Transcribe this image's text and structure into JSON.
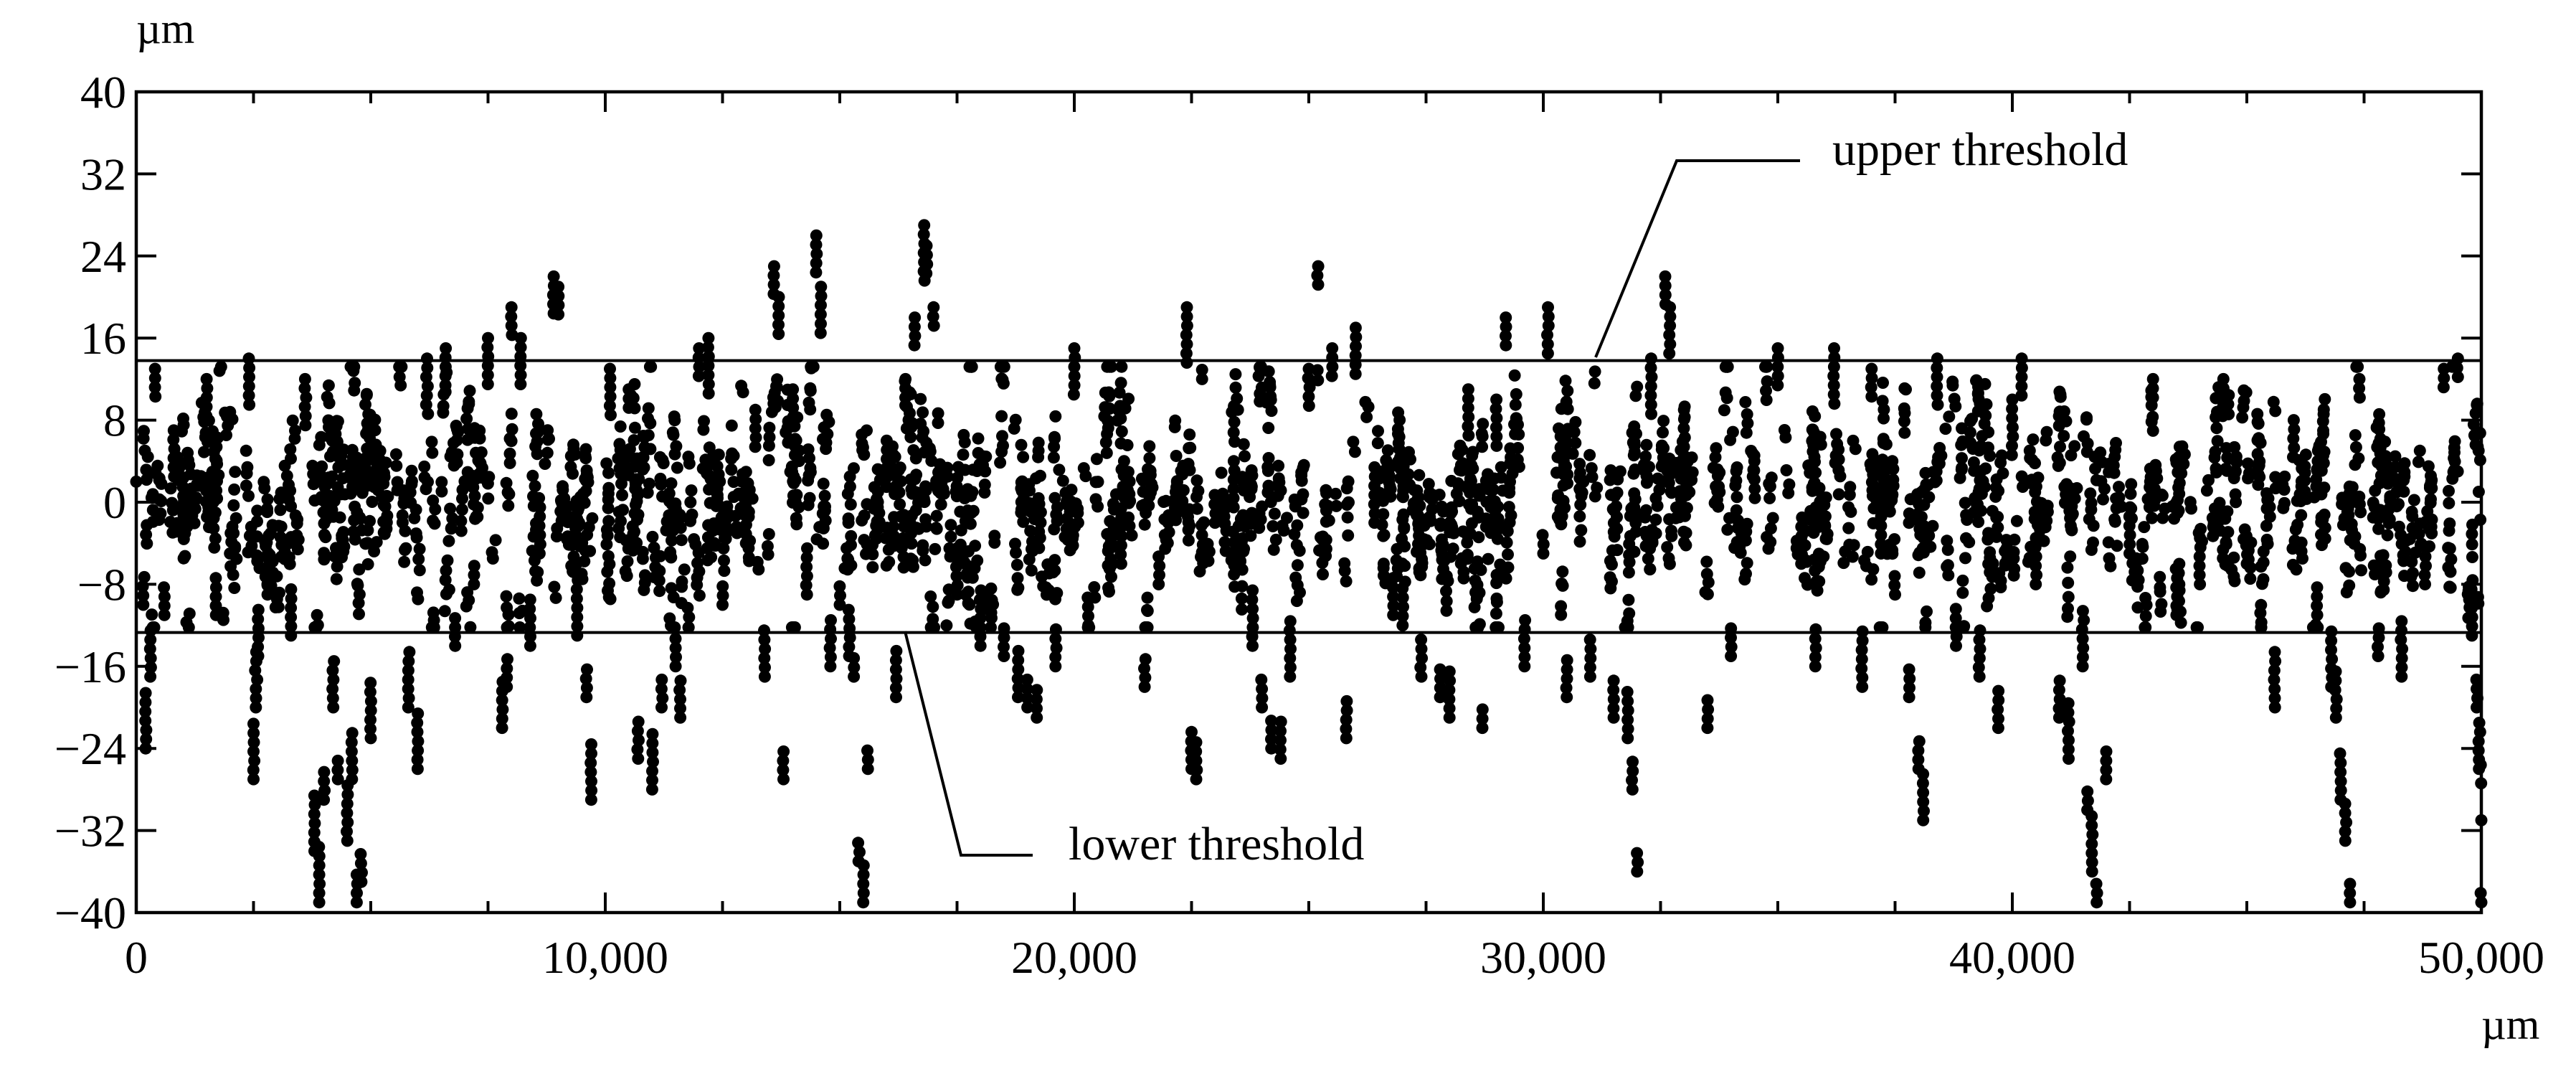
{
  "chart_data": {
    "type": "scatter",
    "title": "",
    "xlabel": "µm",
    "ylabel": "µm",
    "xlim": [
      0,
      50000
    ],
    "ylim": [
      -40,
      40
    ],
    "x_ticks": [
      0,
      10000,
      20000,
      30000,
      40000,
      50000
    ],
    "x_tick_labels": [
      "0",
      "10,000",
      "20,000",
      "30,000",
      "40,000",
      "50,000"
    ],
    "y_ticks": [
      40,
      32,
      24,
      16,
      8,
      0,
      -8,
      -16,
      -24,
      -32,
      -40
    ],
    "y_tick_labels": [
      "40",
      "32",
      "24",
      "16",
      "8",
      "0",
      "−8",
      "−16",
      "−24",
      "−32",
      "−40"
    ],
    "grid": false,
    "thresholds": [
      {
        "name": "upper threshold",
        "value": 13.8
      },
      {
        "name": "lower threshold",
        "value": -12.7
      }
    ],
    "annotations": [
      {
        "text": "upper threshold",
        "points_to": "upper-threshold-line"
      },
      {
        "text": "lower threshold",
        "points_to": "lower-threshold-line"
      }
    ],
    "series": [
      {
        "marker_color": "#000000",
        "point_count_approx": 3000,
        "description_of_data": "dense scatter of profile deviations",
        "points": [
          [
            0,
            2
          ],
          [
            150,
            -10
          ],
          [
            200,
            -24
          ],
          [
            300,
            -17
          ],
          [
            400,
            13
          ],
          [
            600,
            -11
          ],
          [
            800,
            7
          ],
          [
            1000,
            -3
          ],
          [
            1500,
            12
          ],
          [
            1700,
            -11
          ],
          [
            2400,
            14
          ],
          [
            2500,
            -27
          ],
          [
            2550,
            -20
          ],
          [
            2600,
            -15
          ],
          [
            2800,
            -9
          ],
          [
            3300,
            -13
          ],
          [
            3600,
            12
          ],
          [
            3800,
            -34
          ],
          [
            3900,
            -39
          ],
          [
            4000,
            -29
          ],
          [
            4200,
            -20
          ],
          [
            4300,
            -27
          ],
          [
            4500,
            -33
          ],
          [
            4600,
            -27
          ],
          [
            4700,
            -39
          ],
          [
            4800,
            -37
          ],
          [
            5000,
            -23
          ],
          [
            5200,
            5
          ],
          [
            5800,
            -20
          ],
          [
            6000,
            -26
          ],
          [
            6200,
            14
          ],
          [
            6600,
            15
          ],
          [
            6800,
            -14
          ],
          [
            7200,
            -8
          ],
          [
            7500,
            16
          ],
          [
            7800,
            -22
          ],
          [
            7900,
            -18
          ],
          [
            8000,
            19
          ],
          [
            8200,
            16
          ],
          [
            8400,
            -14
          ],
          [
            8600,
            -5
          ],
          [
            8900,
            22
          ],
          [
            9000,
            21
          ],
          [
            9400,
            -13
          ],
          [
            9600,
            -19
          ],
          [
            9700,
            -29
          ],
          [
            10100,
            13
          ],
          [
            10500,
            11
          ],
          [
            10700,
            -25
          ],
          [
            11000,
            -28
          ],
          [
            11200,
            -20
          ],
          [
            11500,
            -16
          ],
          [
            11600,
            -21
          ],
          [
            12000,
            15
          ],
          [
            12200,
            16
          ],
          [
            12500,
            -10
          ],
          [
            13000,
            -4
          ],
          [
            13200,
            9
          ],
          [
            13400,
            -17
          ],
          [
            13600,
            23
          ],
          [
            13700,
            20
          ],
          [
            13800,
            -27
          ],
          [
            14000,
            11
          ],
          [
            14300,
            -9
          ],
          [
            14500,
            26
          ],
          [
            14600,
            21
          ],
          [
            14800,
            -16
          ],
          [
            15000,
            -10
          ],
          [
            15200,
            -15
          ],
          [
            15300,
            -17
          ],
          [
            15400,
            -35
          ],
          [
            15500,
            -39
          ],
          [
            15600,
            -26
          ],
          [
            16000,
            6
          ],
          [
            16200,
            -19
          ],
          [
            16400,
            12
          ],
          [
            16600,
            18
          ],
          [
            16800,
            27
          ],
          [
            16850,
            25
          ],
          [
            17000,
            19
          ],
          [
            17500,
            -9
          ],
          [
            18000,
            -14
          ],
          [
            18500,
            -15
          ],
          [
            18800,
            -19
          ],
          [
            19000,
            -20
          ],
          [
            19200,
            -21
          ],
          [
            19600,
            -16
          ],
          [
            20000,
            15
          ],
          [
            20300,
            -12
          ],
          [
            21000,
            -6
          ],
          [
            21500,
            -18
          ],
          [
            21800,
            -8
          ],
          [
            22400,
            19
          ],
          [
            22500,
            -26
          ],
          [
            22600,
            -27
          ],
          [
            23000,
            -2
          ],
          [
            23400,
            4
          ],
          [
            23800,
            -14
          ],
          [
            24000,
            -20
          ],
          [
            24200,
            -24
          ],
          [
            24400,
            -25
          ],
          [
            24600,
            -17
          ],
          [
            25000,
            13
          ],
          [
            25200,
            23
          ],
          [
            25500,
            15
          ],
          [
            25800,
            -23
          ],
          [
            26000,
            17
          ],
          [
            26400,
            -2
          ],
          [
            26800,
            -11
          ],
          [
            27000,
            -12
          ],
          [
            27400,
            -17
          ],
          [
            27800,
            -19
          ],
          [
            28000,
            -21
          ],
          [
            28400,
            11
          ],
          [
            28700,
            -22
          ],
          [
            29000,
            10
          ],
          [
            29200,
            18
          ],
          [
            29600,
            -16
          ],
          [
            30000,
            -5
          ],
          [
            30100,
            19
          ],
          [
            30500,
            -19
          ],
          [
            31000,
            -17
          ],
          [
            31500,
            -21
          ],
          [
            31800,
            -23
          ],
          [
            31900,
            -28
          ],
          [
            32000,
            -36
          ],
          [
            32300,
            14
          ],
          [
            32600,
            22
          ],
          [
            32700,
            19
          ],
          [
            33000,
            9
          ],
          [
            33500,
            -22
          ],
          [
            34000,
            -15
          ],
          [
            34500,
            4
          ],
          [
            35000,
            15
          ],
          [
            35500,
            -6
          ],
          [
            35800,
            -16
          ],
          [
            36200,
            15
          ],
          [
            36800,
            -18
          ],
          [
            37000,
            13
          ],
          [
            37200,
            -5
          ],
          [
            37500,
            -9
          ],
          [
            37800,
            -19
          ],
          [
            38000,
            -26
          ],
          [
            38100,
            -31
          ],
          [
            38400,
            14
          ],
          [
            38800,
            -14
          ],
          [
            39300,
            -17
          ],
          [
            39700,
            -22
          ],
          [
            40000,
            10
          ],
          [
            40200,
            14
          ],
          [
            40500,
            -8
          ],
          [
            41000,
            -21
          ],
          [
            41200,
            -25
          ],
          [
            41500,
            -16
          ],
          [
            41600,
            -30
          ],
          [
            41700,
            -36
          ],
          [
            41800,
            -39
          ],
          [
            42000,
            -27
          ],
          [
            42500,
            -5
          ],
          [
            43000,
            12
          ],
          [
            43500,
            -11
          ],
          [
            44000,
            -8
          ],
          [
            44500,
            12
          ],
          [
            45000,
            -6
          ],
          [
            45600,
            -20
          ],
          [
            46000,
            8
          ],
          [
            46500,
            -11
          ],
          [
            46800,
            -18
          ],
          [
            46900,
            -21
          ],
          [
            47000,
            -29
          ],
          [
            47100,
            -33
          ],
          [
            47200,
            -39
          ],
          [
            47400,
            12
          ],
          [
            47800,
            -15
          ],
          [
            48300,
            -17
          ],
          [
            48800,
            -8
          ],
          [
            49200,
            13
          ],
          [
            49500,
            14
          ],
          [
            49800,
            -13
          ],
          [
            49900,
            -20
          ],
          [
            49950,
            -26
          ],
          [
            50000,
            -31
          ],
          [
            50000,
            -39
          ]
        ]
      }
    ]
  }
}
